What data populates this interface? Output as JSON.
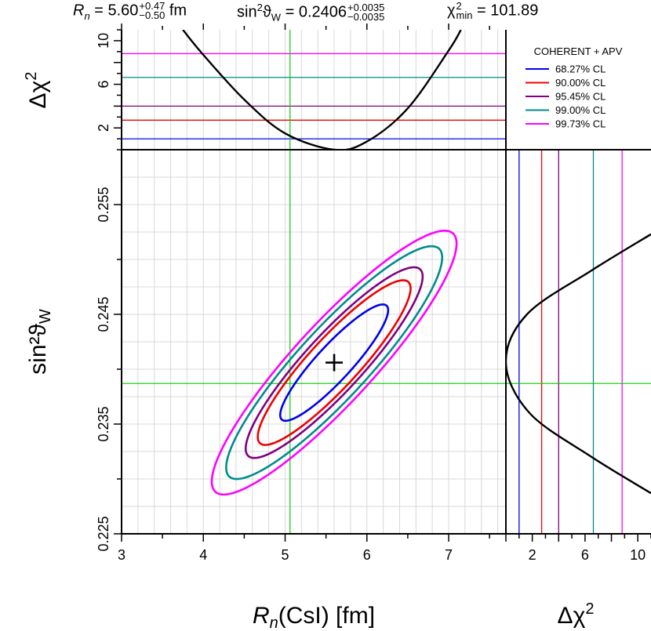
{
  "header": {
    "rn_symbol": "R",
    "rn_sub": "n",
    "rn_value": " = 5.60",
    "rn_err_up": "+0.47",
    "rn_err_down": "−0.50",
    "rn_unit": " fm",
    "sw_symbol": "sin",
    "sw_sup": "2",
    "sw_theta": "ϑ",
    "sw_sub": "W",
    "sw_value": " = 0.2406",
    "sw_err_up": "+0.0035",
    "sw_err_down": "−0.0035",
    "chi_symbol": "χ",
    "chi_sup": "2",
    "chi_sub": "min",
    "chi_value": " = 101.89"
  },
  "axes": {
    "main_x_title_sym": "R",
    "main_x_title_sub": "n",
    "main_x_title_rest": "(CsI)  [fm]",
    "main_y_title": "sin²ϑ",
    "main_y_title_sub": "W",
    "top_y_title": "Δχ",
    "top_y_title_sup": "2",
    "right_x_title": "Δχ",
    "right_x_title_sup": "2"
  },
  "colors": {
    "cl68": "#0000ee",
    "cl90": "#ee0000",
    "cl95": "#800080",
    "cl99": "#008b8b",
    "cl997": "#ff00ff",
    "grid": "#d8d8d8",
    "green": "#00cc00"
  },
  "chart_data": {
    "type": "contour",
    "legend": {
      "title": "COHERENT + APV",
      "placement": "top-right",
      "entries": [
        "68.27% CL",
        "90.00% CL",
        "95.45% CL",
        "99.00% CL",
        "99.73% CL"
      ]
    },
    "best_fit": {
      "rn": 5.6,
      "sin2w": 0.2406
    },
    "apv_reference": {
      "rn": 5.06,
      "sin2w": 0.2387
    },
    "cl_levels": [
      {
        "label": "68.27% CL",
        "delta_chi2": 1.0,
        "color": "#0000ee"
      },
      {
        "label": "90.00% CL",
        "delta_chi2": 2.71,
        "color": "#ee0000"
      },
      {
        "label": "95.45% CL",
        "delta_chi2": 4.0,
        "color": "#800080"
      },
      {
        "label": "99.00% CL",
        "delta_chi2": 6.63,
        "color": "#008b8b"
      },
      {
        "label": "99.73% CL",
        "delta_chi2": 8.81,
        "color": "#ff00ff"
      }
    ],
    "main_panel": {
      "xlabel": "R_n(CsI) [fm]",
      "ylabel": "sin²ϑ_W",
      "xlim": [
        3.0,
        7.7
      ],
      "ylim": [
        0.225,
        0.26
      ],
      "xticks": [
        3,
        4,
        5,
        6,
        7
      ],
      "yticks": [
        0.225,
        0.235,
        0.245,
        0.255
      ],
      "ellipse_68_extent": {
        "rn": [
          4.98,
          6.3
        ],
        "sin2w": [
          0.2351,
          0.2457
        ]
      },
      "ellipse_997_extent": {
        "rn": [
          3.65,
          7.45
        ],
        "sin2w": [
          0.2276,
          0.2527
        ]
      }
    },
    "top_panel": {
      "ylabel": "Δχ²",
      "ylim": [
        0,
        11
      ],
      "yticks": [
        2,
        6,
        10
      ],
      "profile_rn": [
        {
          "rn": 3.75,
          "delta_chi2": 11.0
        },
        {
          "rn": 4.0,
          "delta_chi2": 8.7
        },
        {
          "rn": 4.5,
          "delta_chi2": 4.6
        },
        {
          "rn": 5.0,
          "delta_chi2": 1.5
        },
        {
          "rn": 5.6,
          "delta_chi2": 0.0
        },
        {
          "rn": 6.0,
          "delta_chi2": 0.75
        },
        {
          "rn": 6.5,
          "delta_chi2": 3.8
        },
        {
          "rn": 7.0,
          "delta_chi2": 9.1
        },
        {
          "rn": 7.15,
          "delta_chi2": 11.0
        }
      ]
    },
    "right_panel": {
      "xlabel": "Δχ²",
      "xlim": [
        0,
        11
      ],
      "xticks": [
        2,
        6,
        10
      ],
      "profile_sin2w": [
        {
          "sin2w": 0.2287,
          "delta_chi2": 11.0
        },
        {
          "sin2w": 0.232,
          "delta_chi2": 6.5
        },
        {
          "sin2w": 0.236,
          "delta_chi2": 1.8
        },
        {
          "sin2w": 0.2406,
          "delta_chi2": 0.0
        },
        {
          "sin2w": 0.245,
          "delta_chi2": 1.6
        },
        {
          "sin2w": 0.249,
          "delta_chi2": 6.5
        },
        {
          "sin2w": 0.2523,
          "delta_chi2": 11.0
        }
      ]
    }
  }
}
